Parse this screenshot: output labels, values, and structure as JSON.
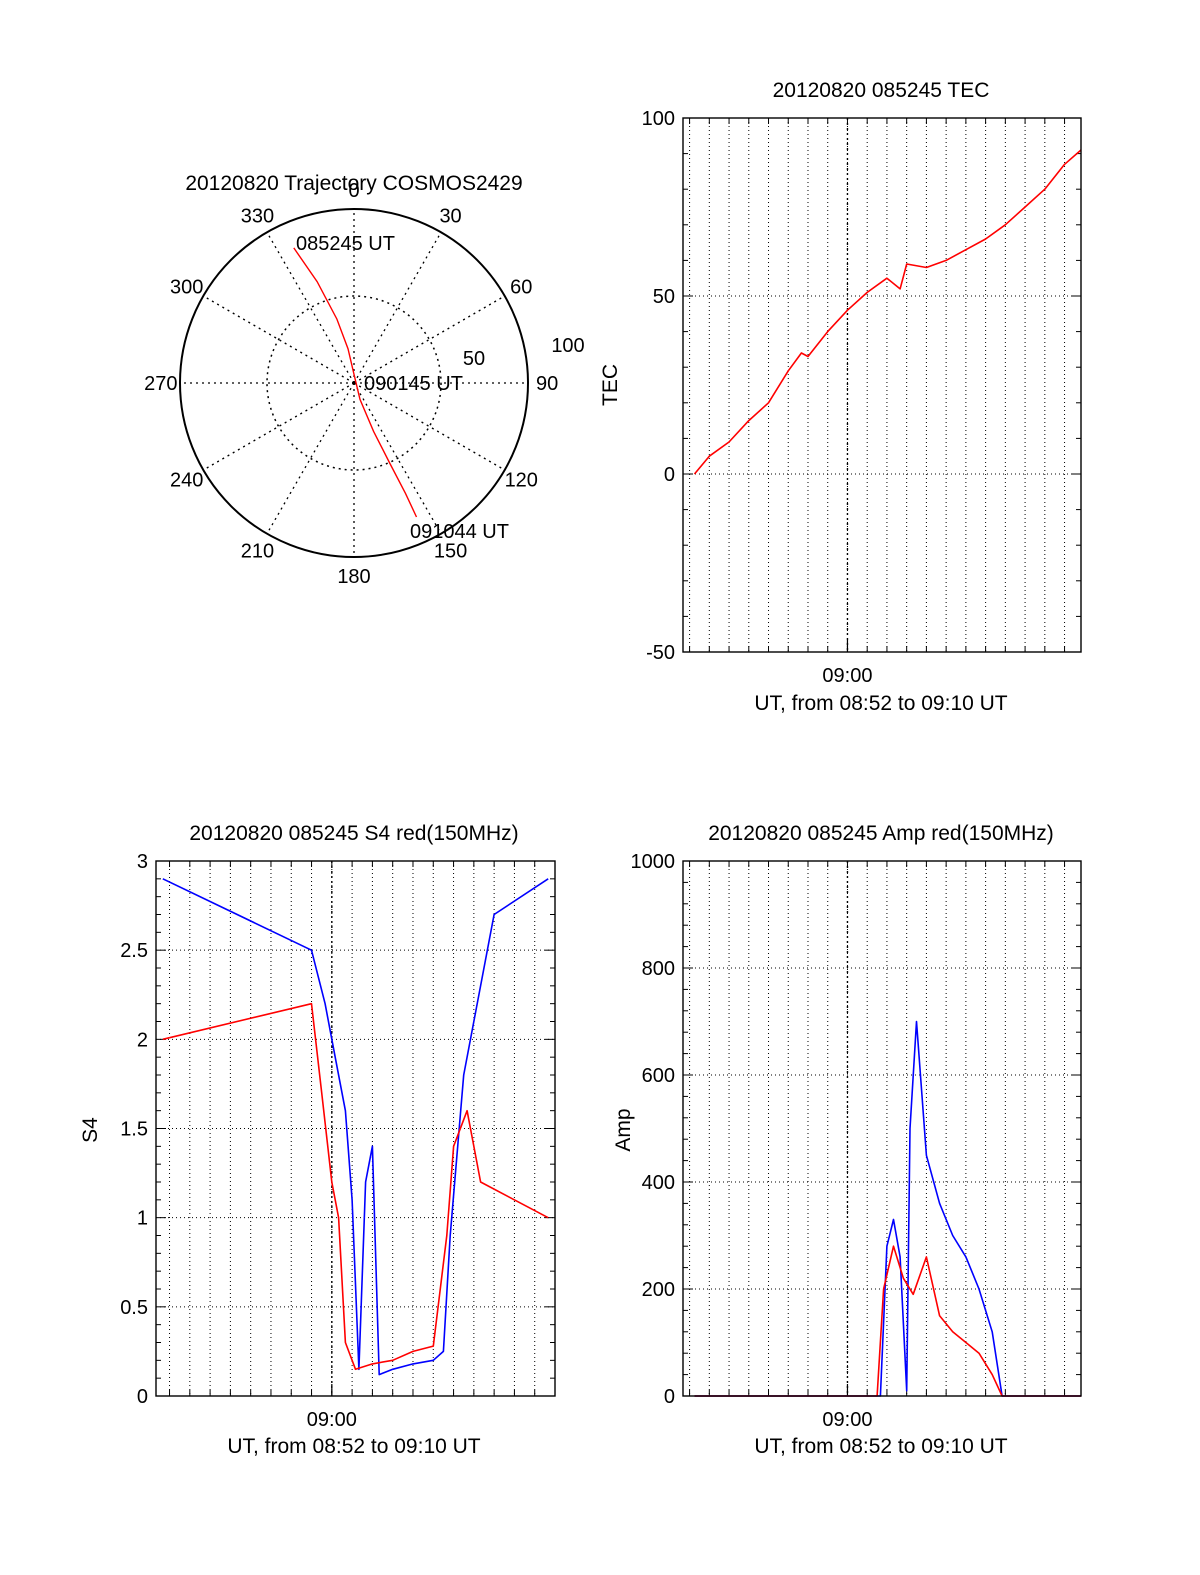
{
  "colors": {
    "red": "#ff0000",
    "blue": "#0000ff",
    "axis": "#000000",
    "grid": "#000000"
  },
  "chart_data": [
    {
      "id": "trajectory",
      "type": "polar",
      "title": "20120820 Trajectory COSMOS2429",
      "angle_labels": [
        "0",
        "30",
        "60",
        "90",
        "120",
        "150",
        "180",
        "210",
        "240",
        "270",
        "300",
        "330"
      ],
      "radius_labels": [
        "50",
        "100"
      ],
      "rlim": [
        0,
        100
      ],
      "grid": true,
      "annotations": [
        "085245 UT",
        "090145 UT",
        "091044 UT"
      ],
      "series": [
        {
          "color": "red",
          "points": [
            {
              "az": 336,
              "r": 85
            },
            {
              "az": 340,
              "r": 62
            },
            {
              "az": 345,
              "r": 38
            },
            {
              "az": 350,
              "r": 20
            },
            {
              "az": 0,
              "r": 5
            },
            {
              "az": 160,
              "r": 10
            },
            {
              "az": 158,
              "r": 30
            },
            {
              "az": 156,
              "r": 50
            },
            {
              "az": 155,
              "r": 70
            },
            {
              "az": 155,
              "r": 85
            }
          ]
        }
      ]
    },
    {
      "id": "tec",
      "type": "line",
      "title": "20120820 085245 TEC",
      "xlabel": "UT, from 08:52 to 09:10 UT",
      "ylabel": "TEC",
      "xlim": [
        "08:51:40",
        "09:11:50"
      ],
      "ylim": [
        -50,
        100
      ],
      "yticks": [
        "-50",
        "0",
        "50",
        "100"
      ],
      "xticks": [
        "09:00"
      ],
      "grid": true,
      "series": [
        {
          "color": "red",
          "x": [
            "08:52:15",
            "08:53:00",
            "08:54:00",
            "08:55:00",
            "08:56:00",
            "08:57:00",
            "08:57:40",
            "08:58:00",
            "08:59:00",
            "09:00:00",
            "09:01:00",
            "09:02:00",
            "09:02:40",
            "09:03:00",
            "09:04:00",
            "09:05:00",
            "09:06:00",
            "09:07:00",
            "09:08:00",
            "09:09:00",
            "09:10:00",
            "09:11:00",
            "09:11:50"
          ],
          "values": [
            0,
            5,
            9,
            15,
            20,
            29,
            34,
            33,
            40,
            46,
            51,
            55,
            52,
            59,
            58,
            60,
            63,
            66,
            70,
            75,
            80,
            87,
            91
          ]
        }
      ]
    },
    {
      "id": "s4",
      "type": "line",
      "title": "20120820 085245 S4 red(150MHz)",
      "xlabel": "UT, from 08:52 to 09:10 UT",
      "ylabel": "S4",
      "xlim": [
        "08:51:20",
        "09:11:00"
      ],
      "ylim": [
        0,
        3
      ],
      "yticks": [
        "0",
        "0.5",
        "1",
        "1.5",
        "2",
        "2.5",
        "3"
      ],
      "xticks": [
        "09:00"
      ],
      "grid": true,
      "series": [
        {
          "color": "blue",
          "x": [
            "08:51:40",
            "08:59:00",
            "08:59:40",
            "09:00:10",
            "09:00:40",
            "09:01:00",
            "09:01:20",
            "09:01:40",
            "09:02:00",
            "09:02:20",
            "09:03:00",
            "09:04:00",
            "09:05:00",
            "09:05:30",
            "09:05:50",
            "09:06:30",
            "09:08:00",
            "09:10:40"
          ],
          "values": [
            2.9,
            2.5,
            2.2,
            1.9,
            1.6,
            1.1,
            0.15,
            1.2,
            1.4,
            0.12,
            0.15,
            0.18,
            0.2,
            0.25,
            0.9,
            1.8,
            2.7,
            2.9
          ]
        },
        {
          "color": "red",
          "x": [
            "08:51:40",
            "08:59:00",
            "08:59:30",
            "09:00:00",
            "09:00:20",
            "09:00:40",
            "09:01:10",
            "09:02:00",
            "09:03:00",
            "09:04:00",
            "09:05:00",
            "09:05:40",
            "09:06:00",
            "09:06:40",
            "09:07:20",
            "09:10:40"
          ],
          "values": [
            2.0,
            2.2,
            1.7,
            1.2,
            1.0,
            0.3,
            0.15,
            0.18,
            0.2,
            0.25,
            0.28,
            0.9,
            1.4,
            1.6,
            1.2,
            1.0
          ]
        }
      ]
    },
    {
      "id": "amp",
      "type": "line",
      "title": "20120820 085245 Amp red(150MHz)",
      "xlabel": "UT, from 08:52 to 09:10 UT",
      "ylabel": "Amp",
      "xlim": [
        "08:51:40",
        "09:11:50"
      ],
      "ylim": [
        0,
        1000
      ],
      "yticks": [
        "0",
        "200",
        "400",
        "600",
        "800",
        "1000"
      ],
      "xticks": [
        "09:00"
      ],
      "grid": true,
      "series": [
        {
          "color": "blue",
          "x": [
            "08:52:15",
            "09:01:40",
            "09:02:00",
            "09:02:20",
            "09:02:40",
            "09:03:00",
            "09:03:10",
            "09:03:30",
            "09:04:00",
            "09:04:40",
            "09:05:20",
            "09:06:00",
            "09:06:40",
            "09:07:20",
            "09:07:50",
            "09:11:50"
          ],
          "values": [
            0,
            0,
            280,
            330,
            260,
            10,
            500,
            700,
            450,
            360,
            300,
            260,
            200,
            120,
            0,
            0
          ]
        },
        {
          "color": "red",
          "x": [
            "08:52:15",
            "09:01:30",
            "09:01:50",
            "09:02:20",
            "09:02:50",
            "09:03:20",
            "09:04:00",
            "09:04:40",
            "09:05:20",
            "09:06:00",
            "09:06:40",
            "09:07:20",
            "09:07:50",
            "09:11:50"
          ],
          "values": [
            0,
            0,
            200,
            280,
            220,
            190,
            260,
            150,
            120,
            100,
            80,
            40,
            0,
            0
          ]
        }
      ]
    }
  ]
}
